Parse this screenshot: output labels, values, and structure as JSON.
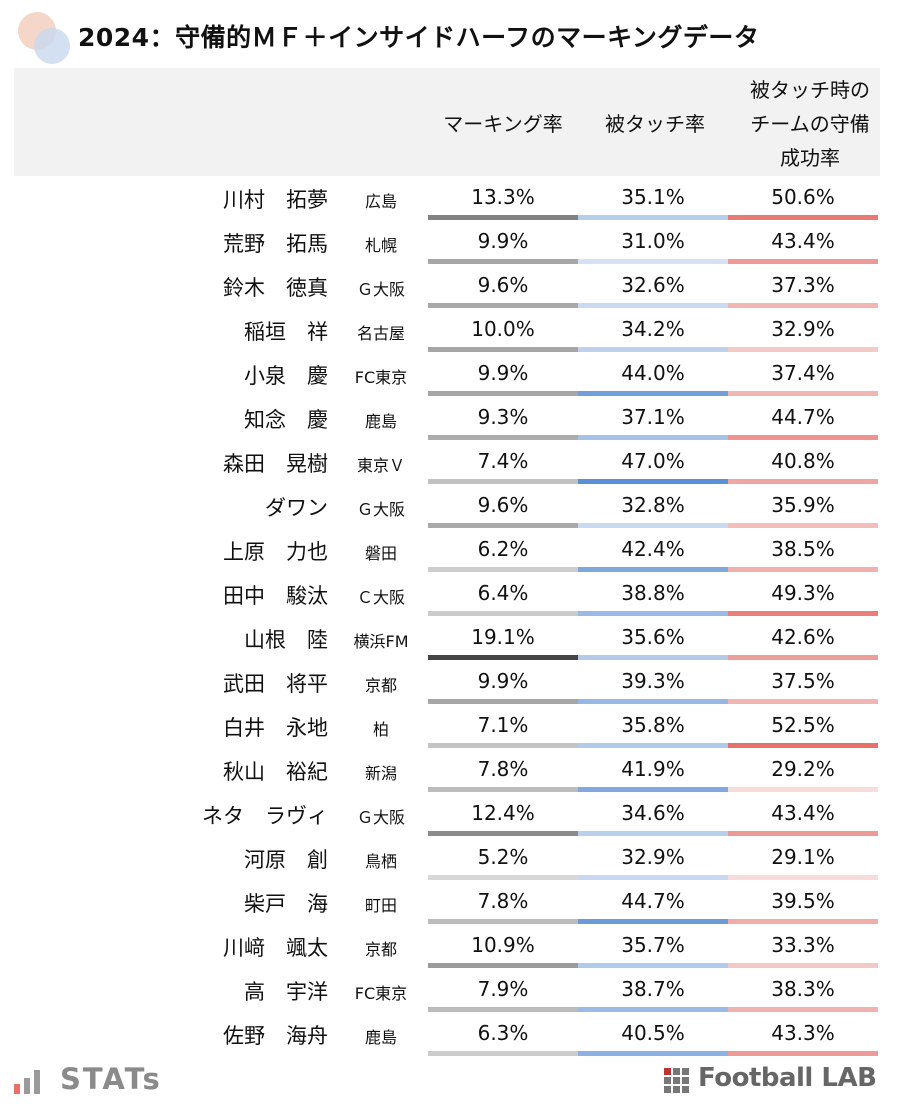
{
  "title": "2024：守備的ＭＦ＋インサイドハーフのマーキングデータ",
  "headers": {
    "col1": "マーキング率",
    "col2": "被タッチ率",
    "col3_lines": [
      "被タッチ時の",
      "チームの守備",
      "成功率"
    ]
  },
  "colors": {
    "col1_bar": "#808080",
    "col2_bar": "#5b8fd6",
    "col3_bar": "#e8706a",
    "header_bg": "#f2f2f2"
  },
  "chart_data": {
    "type": "table",
    "title": "2024：守備的ＭＦ＋インサイドハーフのマーキングデータ",
    "columns": [
      "マーキング率",
      "被タッチ率",
      "被タッチ時のチームの守備成功率"
    ],
    "rows": [
      {
        "name": "川村　拓夢",
        "team": "広島",
        "marking": "13.3%",
        "touched": "35.1%",
        "success": "50.6%",
        "m": 13.3,
        "t": 35.1,
        "s": 50.6
      },
      {
        "name": "荒野　拓馬",
        "team": "札幌",
        "marking": "9.9%",
        "touched": "31.0%",
        "success": "43.4%",
        "m": 9.9,
        "t": 31.0,
        "s": 43.4
      },
      {
        "name": "鈴木　徳真",
        "team": "Ｇ大阪",
        "marking": "9.6%",
        "touched": "32.6%",
        "success": "37.3%",
        "m": 9.6,
        "t": 32.6,
        "s": 37.3
      },
      {
        "name": "稲垣　祥",
        "team": "名古屋",
        "marking": "10.0%",
        "touched": "34.2%",
        "success": "32.9%",
        "m": 10.0,
        "t": 34.2,
        "s": 32.9
      },
      {
        "name": "小泉　慶",
        "team": "FC東京",
        "marking": "9.9%",
        "touched": "44.0%",
        "success": "37.4%",
        "m": 9.9,
        "t": 44.0,
        "s": 37.4
      },
      {
        "name": "知念　慶",
        "team": "鹿島",
        "marking": "9.3%",
        "touched": "37.1%",
        "success": "44.7%",
        "m": 9.3,
        "t": 37.1,
        "s": 44.7
      },
      {
        "name": "森田　晃樹",
        "team": "東京Ｖ",
        "marking": "7.4%",
        "touched": "47.0%",
        "success": "40.8%",
        "m": 7.4,
        "t": 47.0,
        "s": 40.8
      },
      {
        "name": "ダワン",
        "team": "Ｇ大阪",
        "marking": "9.6%",
        "touched": "32.8%",
        "success": "35.9%",
        "m": 9.6,
        "t": 32.8,
        "s": 35.9
      },
      {
        "name": "上原　力也",
        "team": "磐田",
        "marking": "6.2%",
        "touched": "42.4%",
        "success": "38.5%",
        "m": 6.2,
        "t": 42.4,
        "s": 38.5
      },
      {
        "name": "田中　駿汰",
        "team": "Ｃ大阪",
        "marking": "6.4%",
        "touched": "38.8%",
        "success": "49.3%",
        "m": 6.4,
        "t": 38.8,
        "s": 49.3
      },
      {
        "name": "山根　陸",
        "team": "横浜FM",
        "marking": "19.1%",
        "touched": "35.6%",
        "success": "42.6%",
        "m": 19.1,
        "t": 35.6,
        "s": 42.6
      },
      {
        "name": "武田　将平",
        "team": "京都",
        "marking": "9.9%",
        "touched": "39.3%",
        "success": "37.5%",
        "m": 9.9,
        "t": 39.3,
        "s": 37.5
      },
      {
        "name": "白井　永地",
        "team": "柏",
        "marking": "7.1%",
        "touched": "35.8%",
        "success": "52.5%",
        "m": 7.1,
        "t": 35.8,
        "s": 52.5
      },
      {
        "name": "秋山　裕紀",
        "team": "新潟",
        "marking": "7.8%",
        "touched": "41.9%",
        "success": "29.2%",
        "m": 7.8,
        "t": 41.9,
        "s": 29.2
      },
      {
        "name": "ネタ　ラヴィ",
        "team": "Ｇ大阪",
        "marking": "12.4%",
        "touched": "34.6%",
        "success": "43.4%",
        "m": 12.4,
        "t": 34.6,
        "s": 43.4
      },
      {
        "name": "河原　創",
        "team": "鳥栖",
        "marking": "5.2%",
        "touched": "32.9%",
        "success": "29.1%",
        "m": 5.2,
        "t": 32.9,
        "s": 29.1
      },
      {
        "name": "柴戸　海",
        "team": "町田",
        "marking": "7.8%",
        "touched": "44.7%",
        "success": "39.5%",
        "m": 7.8,
        "t": 44.7,
        "s": 39.5
      },
      {
        "name": "川﨑　颯太",
        "team": "京都",
        "marking": "10.9%",
        "touched": "35.7%",
        "success": "33.3%",
        "m": 10.9,
        "t": 35.7,
        "s": 33.3
      },
      {
        "name": "高　宇洋",
        "team": "FC東京",
        "marking": "7.9%",
        "touched": "38.7%",
        "success": "38.3%",
        "m": 7.9,
        "t": 38.7,
        "s": 38.3
      },
      {
        "name": "佐野　海舟",
        "team": "鹿島",
        "marking": "6.3%",
        "touched": "40.5%",
        "success": "43.3%",
        "m": 6.3,
        "t": 40.5,
        "s": 43.3
      }
    ]
  },
  "footer": {
    "left_logo": "STATs",
    "right_logo": "Football LAB"
  }
}
